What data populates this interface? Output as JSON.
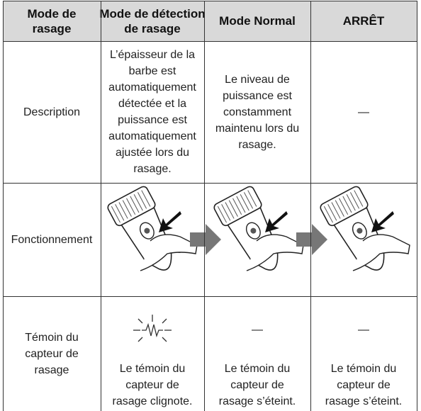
{
  "header": [
    [
      "Mode de",
      "rasage"
    ],
    [
      "Mode de détection",
      "de rasage"
    ],
    [
      "Mode Normal"
    ],
    [
      "ARRÊT"
    ]
  ],
  "rows": [
    {
      "label": [
        "Description"
      ],
      "cells": [
        {
          "lines": [
            "L’épaisseur de la",
            "barbe est",
            "automatiquement",
            "détectée et la",
            "puissance est",
            "automatiquement",
            "ajustée lors du",
            "rasage."
          ]
        },
        {
          "lines": [
            "Le niveau de",
            "puissance est",
            "constamment",
            "maintenu lors du",
            "rasage."
          ]
        },
        {
          "lines": [
            "—"
          ]
        }
      ]
    },
    {
      "label": [
        "Fonctionnement"
      ]
    },
    {
      "label": [
        "Témoin du",
        "capteur de",
        "rasage"
      ],
      "cells": [
        {
          "lines": [
            "Le témoin du",
            "capteur de",
            "rasage clignote."
          ]
        },
        {
          "indicator": "—",
          "lines": [
            "Le témoin du",
            "capteur de",
            "rasage s’éteint."
          ]
        },
        {
          "indicator": "—",
          "lines": [
            "Le témoin du",
            "capteur de",
            "rasage s’éteint."
          ]
        }
      ]
    }
  ]
}
